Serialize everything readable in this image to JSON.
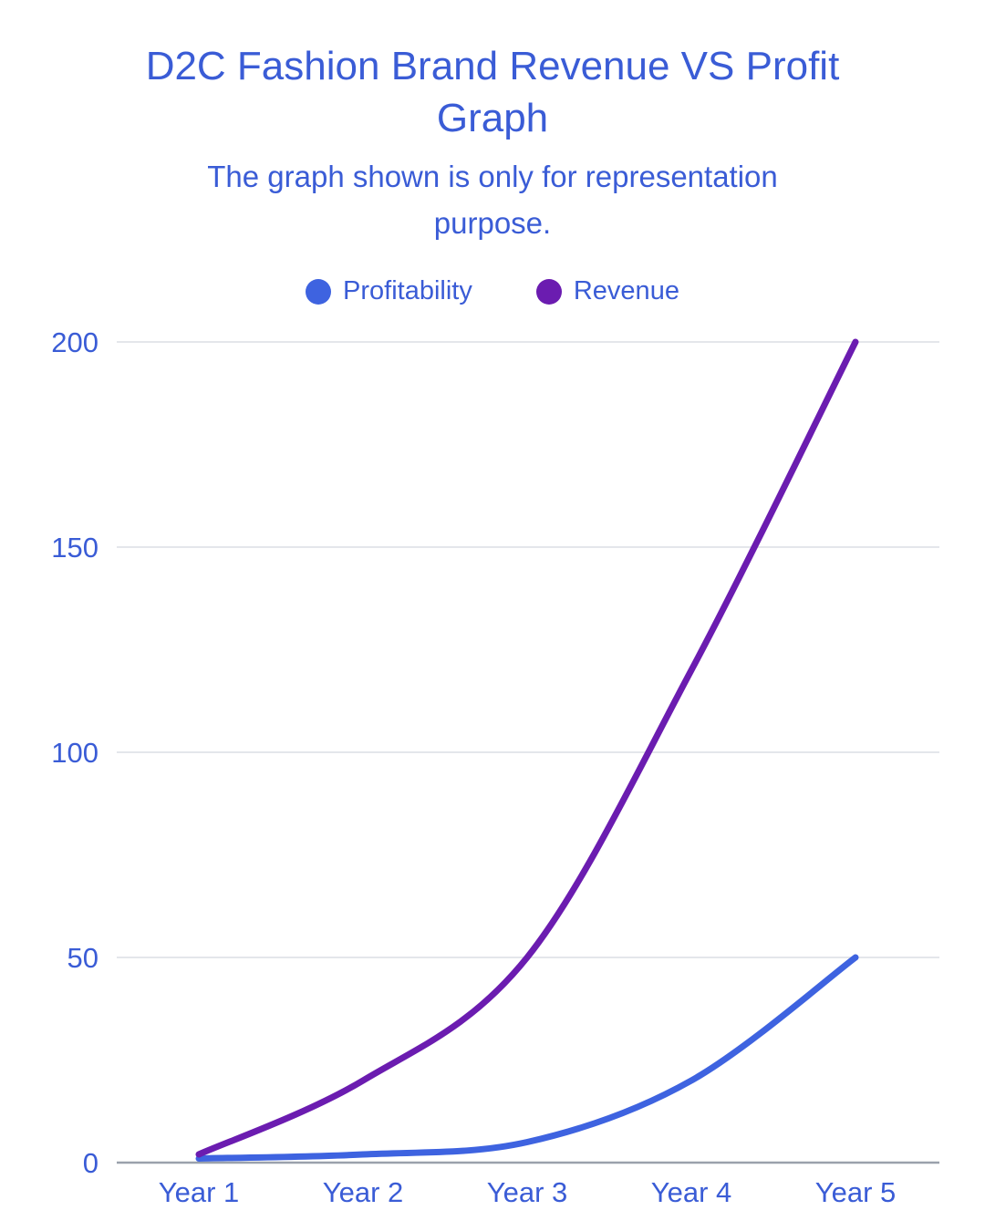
{
  "header": {
    "title": "D2C Fashion Brand Revenue VS Profit Graph",
    "subtitle": "The graph shown is only for representation purpose."
  },
  "chart_data": {
    "type": "line",
    "title": "D2C Fashion Brand Revenue VS Profit Graph",
    "subtitle": "The graph shown is only for representation purpose.",
    "categories": [
      "Year 1",
      "Year 2",
      "Year 3",
      "Year 4",
      "Year 5"
    ],
    "series": [
      {
        "name": "Profitability",
        "color": "#3e63e0",
        "values": [
          1,
          2,
          5,
          20,
          50
        ]
      },
      {
        "name": "Revenue",
        "color": "#6b1cb0",
        "values": [
          2,
          20,
          50,
          120,
          200
        ]
      }
    ],
    "xlabel": "",
    "ylabel": "",
    "ylim": [
      0,
      200
    ],
    "yticks": [
      0,
      50,
      100,
      150,
      200
    ],
    "grid": true,
    "legend_position": "top",
    "line_smoothing": true
  },
  "colors": {
    "text_blue": "#3a5cd6",
    "profitability_line": "#3e63e0",
    "revenue_line": "#6b1cb0",
    "gridline": "#e4e6eb",
    "baseline": "#9aa1ac",
    "background": "#ffffff"
  }
}
